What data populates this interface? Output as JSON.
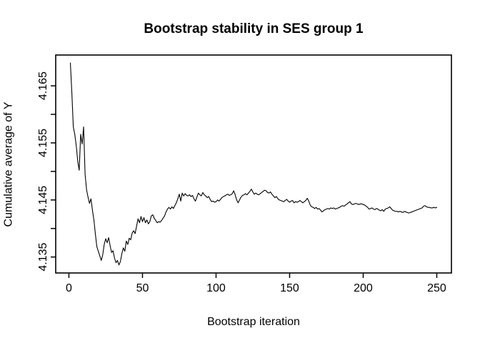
{
  "figure": {
    "background": "#ffffff",
    "foreground": "#000000"
  },
  "chart_data": {
    "type": "line",
    "title": "Bootstrap stability in SES group 1",
    "xlabel": "Bootstrap iteration",
    "ylabel": "Cumulative average of Y",
    "legend": null,
    "grid": false,
    "line_color": "#000000",
    "xlim": [
      -8.96,
      259.96
    ],
    "ylim": [
      4.1322,
      4.1704
    ],
    "x_ticks": [
      0,
      50,
      100,
      150,
      200,
      250
    ],
    "x_tick_labels": [
      "0",
      "50",
      "100",
      "150",
      "200",
      "250"
    ],
    "y_ticks": [
      4.135,
      4.14,
      4.145,
      4.15,
      4.155,
      4.16,
      4.165
    ],
    "y_tick_labels": [
      "4.135",
      "",
      "4.145",
      "",
      "4.155",
      "",
      "4.165"
    ],
    "x_start": 1,
    "x_step": 1,
    "values": [
      4.169,
      4.1638,
      4.1578,
      4.1565,
      4.1545,
      4.1518,
      4.1502,
      4.1565,
      4.1548,
      4.1578,
      4.1495,
      4.1468,
      4.1455,
      4.1444,
      4.1452,
      4.1432,
      4.1415,
      4.139,
      4.1368,
      4.136,
      4.1352,
      4.1344,
      4.1354,
      4.1372,
      4.1382,
      4.1375,
      4.1384,
      4.137,
      4.1358,
      4.1361,
      4.1348,
      4.134,
      4.1344,
      4.1336,
      4.1342,
      4.1356,
      4.1366,
      4.136,
      4.1378,
      4.1372,
      4.1383,
      4.138,
      4.1392,
      4.1396,
      4.1391,
      4.1404,
      4.1417,
      4.141,
      4.1421,
      4.1412,
      4.1419,
      4.141,
      4.1415,
      4.1408,
      4.1412,
      4.1422,
      4.1424,
      4.1418,
      4.1414,
      4.141,
      4.1412,
      4.1411,
      4.1414,
      4.1418,
      4.1422,
      4.1429,
      4.1434,
      4.1437,
      4.1434,
      4.1438,
      4.1435,
      4.144,
      4.1445,
      4.1452,
      4.146,
      4.1448,
      4.1462,
      4.1457,
      4.1461,
      4.1458,
      4.1457,
      4.1459,
      4.1456,
      4.1458,
      4.1452,
      4.1448,
      4.1455,
      4.1462,
      4.1459,
      4.1457,
      4.1463,
      4.1459,
      4.1457,
      4.1454,
      4.1456,
      4.1451,
      4.1447,
      4.1448,
      4.1446,
      4.1447,
      4.145,
      4.1448,
      4.1451,
      4.1454,
      4.1456,
      4.1457,
      4.1459,
      4.146,
      4.1458,
      4.1459,
      4.1461,
      4.1466,
      4.1459,
      4.145,
      4.1445,
      4.145,
      4.1455,
      4.1458,
      4.1459,
      4.1461,
      4.1459,
      4.1462,
      4.1465,
      4.1469,
      4.1464,
      4.146,
      4.1462,
      4.146,
      4.1459,
      4.1461,
      4.1463,
      4.1465,
      4.1467,
      4.1466,
      4.1463,
      4.1462,
      4.1464,
      4.146,
      4.1457,
      4.1454,
      4.1456,
      4.1452,
      4.145,
      4.1449,
      4.1448,
      4.1447,
      4.1449,
      4.1451,
      4.1448,
      4.1446,
      4.1448,
      4.1449,
      4.1445,
      4.1447,
      4.1446,
      4.1447,
      4.1449,
      4.1447,
      4.1445,
      4.1447,
      4.1449,
      4.1453,
      4.1448,
      4.1441,
      4.1438,
      4.1437,
      4.1435,
      4.1437,
      4.1434,
      4.1435,
      4.1432,
      4.1429,
      4.1431,
      4.1433,
      4.1434,
      4.1435,
      4.1434,
      4.1436,
      4.1435,
      4.1436,
      4.1434,
      4.1435,
      4.1436,
      4.1437,
      4.1439,
      4.144,
      4.1439,
      4.1441,
      4.1443,
      4.1445,
      4.1447,
      4.1443,
      4.1442,
      4.1443,
      4.1444,
      4.1443,
      4.1442,
      4.1443,
      4.1443,
      4.1442,
      4.1441,
      4.1439,
      4.1437,
      4.1434,
      4.1435,
      4.1436,
      4.1434,
      4.1433,
      4.1435,
      4.1434,
      4.1432,
      4.1431,
      4.1433,
      4.143,
      4.1434,
      4.1435,
      4.1436,
      4.1438,
      4.1435,
      4.1432,
      4.1431,
      4.143,
      4.143,
      4.1429,
      4.143,
      4.1429,
      4.1428,
      4.143,
      4.1429,
      4.1428,
      4.1427,
      4.1428,
      4.1429,
      4.143,
      4.1431,
      4.1432,
      4.1433,
      4.1434,
      4.1435,
      4.1436,
      4.1439,
      4.144,
      4.1438,
      4.1437,
      4.1437,
      4.1436,
      4.1436,
      4.1437,
      4.1436,
      4.1437
    ]
  }
}
